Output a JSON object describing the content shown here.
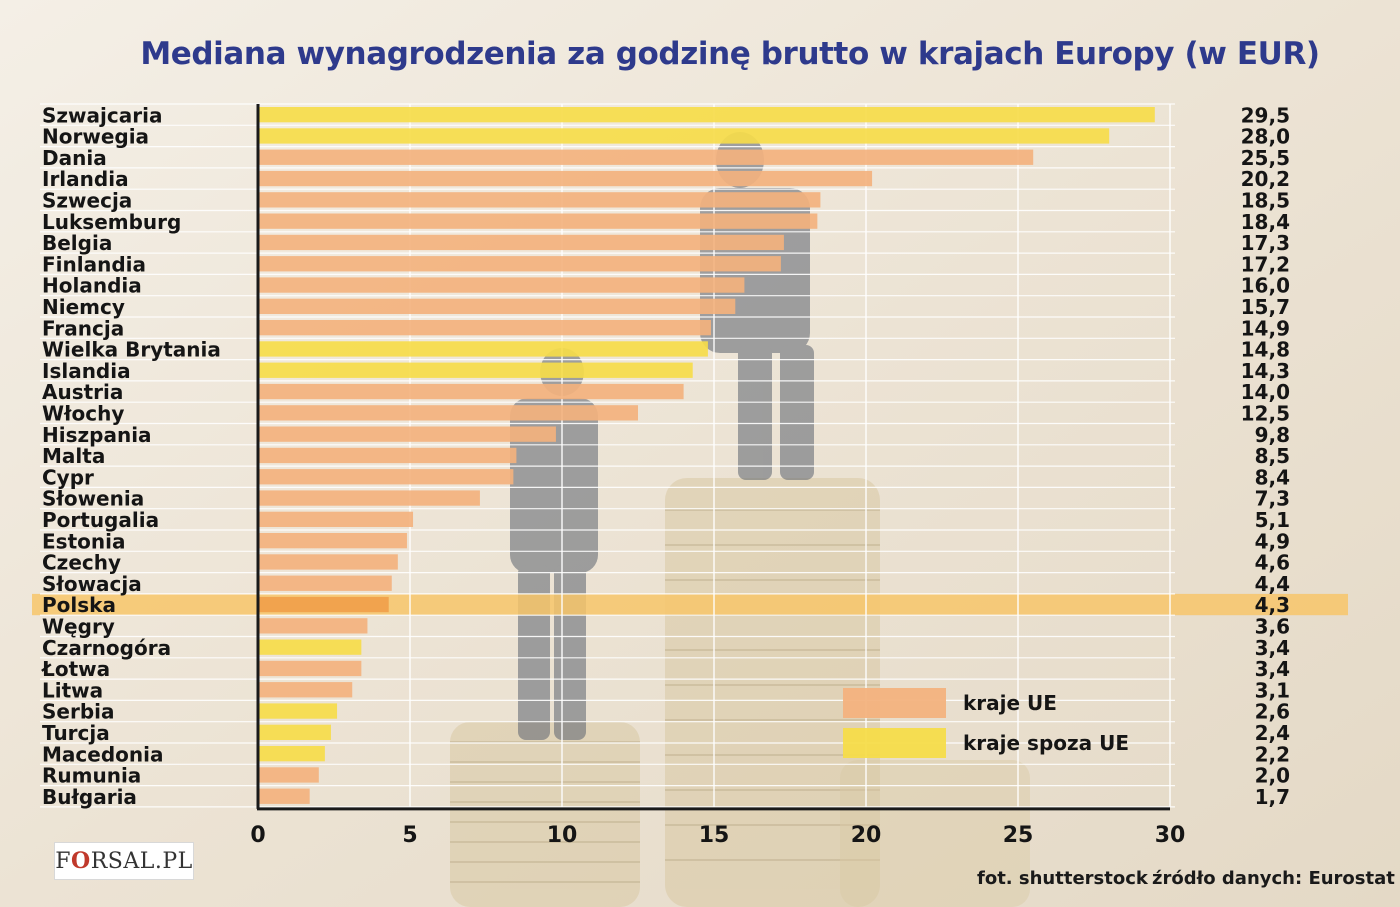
{
  "title": "Mediana wynagrodzenia za godzinę brutto w krajach Europy (w EUR)",
  "colors": {
    "eu": "#f3b27e",
    "non_eu": "#f6dc4a",
    "highlight_row": "#f7c66a",
    "title": "#2e3a8c"
  },
  "logo": {
    "prefix": "F",
    "icon": "coin-o-icon",
    "suffix": "RSAL.PL"
  },
  "credits": {
    "photo": "fot. shutterstock",
    "source": "źródło danych: Eurostat"
  },
  "chart_data": {
    "type": "bar",
    "orientation": "horizontal",
    "title": "Mediana wynagrodzenia za godzinę brutto w krajach Europy (w EUR)",
    "xlim": [
      0,
      30
    ],
    "xticks": [
      "0",
      "5",
      "10",
      "15",
      "20",
      "25",
      "30"
    ],
    "grid": true,
    "highlight": "Polska",
    "legend": {
      "position": "bottom-right",
      "entries": [
        {
          "label": "kraje UE",
          "group": "eu"
        },
        {
          "label": "kraje spoza UE",
          "group": "non_eu"
        }
      ]
    },
    "categories": [
      "Szwajcaria",
      "Norwegia",
      "Dania",
      "Irlandia",
      "Szwecja",
      "Luksemburg",
      "Belgia",
      "Finlandia",
      "Holandia",
      "Niemcy",
      "Francja",
      "Wielka Brytania",
      "Islandia",
      "Austria",
      "Włochy",
      "Hiszpania",
      "Malta",
      "Cypr",
      "Słowenia",
      "Portugalia",
      "Estonia",
      "Czechy",
      "Słowacja",
      "Polska",
      "Węgry",
      "Czarnogóra",
      "Łotwa",
      "Litwa",
      "Serbia",
      "Turcja",
      "Macedonia",
      "Rumunia",
      "Bułgaria"
    ],
    "values": [
      29.5,
      28.0,
      25.5,
      20.2,
      18.5,
      18.4,
      17.3,
      17.2,
      16.0,
      15.7,
      14.9,
      14.8,
      14.3,
      14.0,
      12.5,
      9.8,
      8.5,
      8.4,
      7.3,
      5.1,
      4.9,
      4.6,
      4.4,
      4.3,
      3.6,
      3.4,
      3.4,
      3.1,
      2.6,
      2.4,
      2.2,
      2.0,
      1.7
    ],
    "value_labels": [
      "29,5",
      "28,0",
      "25,5",
      "20,2",
      "18,5",
      "18,4",
      "17,3",
      "17,2",
      "16,0",
      "15,7",
      "14,9",
      "14,8",
      "14,3",
      "14,0",
      "12,5",
      "9,8",
      "8,5",
      "8,4",
      "7,3",
      "5,1",
      "4,9",
      "4,6",
      "4,4",
      "4,3",
      "3,6",
      "3,4",
      "3,4",
      "3,1",
      "2,6",
      "2,4",
      "2,2",
      "2,0",
      "1,7"
    ],
    "groups": [
      "non_eu",
      "non_eu",
      "eu",
      "eu",
      "eu",
      "eu",
      "eu",
      "eu",
      "eu",
      "eu",
      "eu",
      "non_eu",
      "non_eu",
      "eu",
      "eu",
      "eu",
      "eu",
      "eu",
      "eu",
      "eu",
      "eu",
      "eu",
      "eu",
      "eu",
      "eu",
      "non_eu",
      "eu",
      "eu",
      "non_eu",
      "non_eu",
      "non_eu",
      "eu",
      "eu"
    ]
  }
}
